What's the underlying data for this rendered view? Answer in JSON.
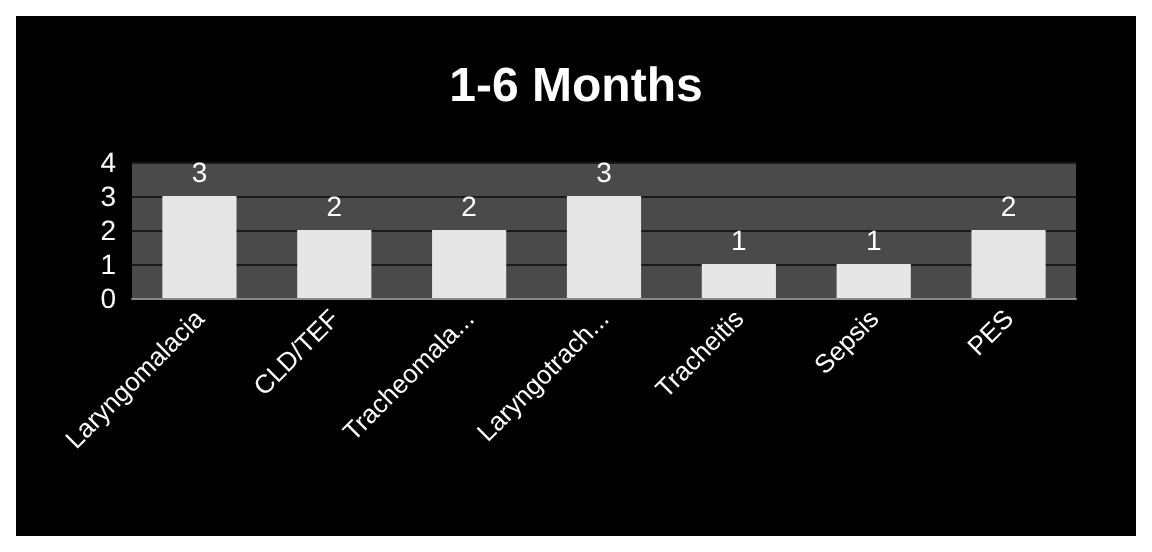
{
  "chart_data": {
    "type": "bar",
    "title": "1-6 Months",
    "categories": [
      "Laryngomalacia",
      "CLD/TEF",
      "Tracheomala...",
      "Laryngotrach...",
      "Tracheitis",
      "Sepsis",
      "PES"
    ],
    "values": [
      3,
      2,
      2,
      3,
      1,
      1,
      2
    ],
    "color": "#e6e6e6",
    "ylim": [
      0,
      4
    ],
    "yticks": [
      0,
      1,
      2,
      3,
      4
    ],
    "grid": "y",
    "data_labels": true
  }
}
